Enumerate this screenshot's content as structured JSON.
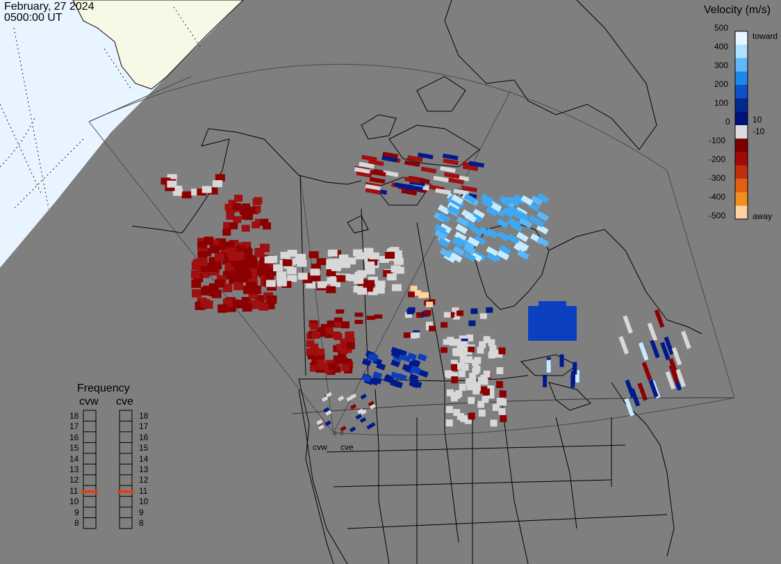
{
  "header": {
    "date": "February, 27 2024",
    "time": "0500:00 UT"
  },
  "velocity_scale": {
    "title": "Velocity (m/s)",
    "ticks": [
      "500",
      "400",
      "300",
      "200",
      "100",
      "10",
      "0",
      "-10",
      "-100",
      "-200",
      "-300",
      "-400",
      "-500"
    ],
    "toward_label": "toward",
    "away_label": "away",
    "colors": [
      "#e8f6ff",
      "#b0e0ff",
      "#60b8f8",
      "#1e88e8",
      "#1050c8",
      "#002a90",
      "#00107a",
      "#dcdcdc",
      "#7a0000",
      "#a00a0a",
      "#c03010",
      "#e06010",
      "#f09020",
      "#ffd0a0"
    ]
  },
  "frequency_panel": {
    "title": "Frequency",
    "stations": [
      {
        "name": "cvw",
        "frequency_mhz": 11
      },
      {
        "name": "cve",
        "frequency_mhz": 11
      }
    ],
    "ticks": [
      "18",
      "17",
      "16",
      "15",
      "14",
      "13",
      "12",
      "11",
      "10",
      "9",
      "8"
    ],
    "marker_color": "#e04010"
  },
  "radar_sites": [
    {
      "name": "cvw"
    },
    {
      "name": "cve"
    }
  ],
  "map_colors": {
    "background": "#7f7f7f",
    "daylight_region": "#e8f4ff",
    "ice_land": "#f8f8e6",
    "coastline": "#000000",
    "grid": "#555555"
  }
}
